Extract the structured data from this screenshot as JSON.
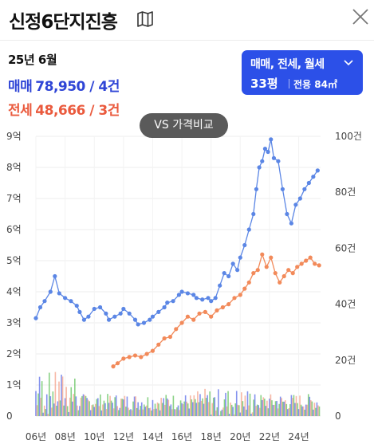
{
  "header": {
    "title": "신정6단지진흥"
  },
  "summary": {
    "date": "25년 6월",
    "trade_label": "매매",
    "trade_value": "78,950 / 4건",
    "lease_label": "전세",
    "lease_value": "48,666 / 3건"
  },
  "filter": {
    "types": "매매, 전세, 월세",
    "pyeong": "33평",
    "area": "전용 84㎡"
  },
  "compare_button": "VS 가격비교",
  "colors": {
    "trade": "#5b86e5",
    "lease": "#f28a5a",
    "accent": "#2c50e8"
  },
  "chart_data": {
    "type": "line",
    "y_left_ticks": [
      "0",
      "1억",
      "2억",
      "3억",
      "4억",
      "5억",
      "6억",
      "7억",
      "8억",
      "9억"
    ],
    "y_right_ticks": [
      "0",
      "20건",
      "40건",
      "60건",
      "80건",
      "100건"
    ],
    "x_ticks": [
      "06년",
      "08년",
      "10년",
      "12년",
      "14년",
      "16년",
      "18년",
      "20년",
      "22년",
      "24년"
    ],
    "ylim_left": [
      0,
      9
    ],
    "ylim_right": [
      0,
      100
    ],
    "xlim": [
      2006,
      2025.5
    ],
    "series": [
      {
        "name": "매매",
        "color": "#5b86e5",
        "x": [
          2006.0,
          2006.3,
          2006.6,
          2007.0,
          2007.3,
          2007.6,
          2008.0,
          2008.4,
          2008.8,
          2009.0,
          2009.3,
          2009.6,
          2010.0,
          2010.4,
          2010.8,
          2011.0,
          2011.4,
          2011.8,
          2012.0,
          2012.4,
          2012.8,
          2013.0,
          2013.4,
          2013.8,
          2014.0,
          2014.4,
          2014.8,
          2015.0,
          2015.4,
          2015.8,
          2016.0,
          2016.4,
          2016.8,
          2017.0,
          2017.4,
          2017.8,
          2018.0,
          2018.3,
          2018.6,
          2018.9,
          2019.2,
          2019.5,
          2019.8,
          2020.0,
          2020.3,
          2020.6,
          2020.9,
          2021.1,
          2021.3,
          2021.5,
          2021.7,
          2021.9,
          2022.1,
          2022.3,
          2022.6,
          2022.9,
          2023.2,
          2023.5,
          2023.8,
          2024.1,
          2024.4,
          2024.7,
          2025.0,
          2025.3
        ],
        "y": [
          3.15,
          3.5,
          3.7,
          4.0,
          4.5,
          3.95,
          3.8,
          3.7,
          3.55,
          3.35,
          3.1,
          3.2,
          3.45,
          3.5,
          3.3,
          3.1,
          3.2,
          3.3,
          3.45,
          3.3,
          3.1,
          2.95,
          3.0,
          3.1,
          3.2,
          3.35,
          3.5,
          3.65,
          3.7,
          3.9,
          4.0,
          3.95,
          3.9,
          3.8,
          3.75,
          3.8,
          3.7,
          3.8,
          4.2,
          4.6,
          4.5,
          4.9,
          4.7,
          5.1,
          5.5,
          6.0,
          6.5,
          7.3,
          8.0,
          8.2,
          8.6,
          8.5,
          8.9,
          8.3,
          8.2,
          7.3,
          6.5,
          6.2,
          6.8,
          7.0,
          7.3,
          7.5,
          7.7,
          7.9
        ]
      },
      {
        "name": "전세",
        "color": "#f28a5a",
        "x": [
          2011.3,
          2011.6,
          2012.0,
          2012.4,
          2012.8,
          2013.2,
          2013.6,
          2014.0,
          2014.4,
          2014.8,
          2015.2,
          2015.6,
          2016.0,
          2016.4,
          2016.8,
          2017.2,
          2017.6,
          2018.0,
          2018.4,
          2018.8,
          2019.2,
          2019.6,
          2020.0,
          2020.3,
          2020.6,
          2020.9,
          2021.2,
          2021.5,
          2021.8,
          2022.1,
          2022.4,
          2022.7,
          2023.0,
          2023.3,
          2023.6,
          2023.9,
          2024.2,
          2024.5,
          2024.8,
          2025.1,
          2025.4
        ],
        "y": [
          1.6,
          1.7,
          1.85,
          1.9,
          1.95,
          1.9,
          2.0,
          2.1,
          2.3,
          2.5,
          2.55,
          2.8,
          3.0,
          3.2,
          3.1,
          3.3,
          3.35,
          3.2,
          3.4,
          3.5,
          3.6,
          3.8,
          3.9,
          4.1,
          4.3,
          4.6,
          4.7,
          5.2,
          4.8,
          5.1,
          4.6,
          4.3,
          4.5,
          4.7,
          4.6,
          4.8,
          4.9,
          5.0,
          5.1,
          4.9,
          4.85
        ]
      }
    ],
    "volume_series": [
      {
        "name": "매매 거래량",
        "color": "#5b6ee8"
      },
      {
        "name": "전세 거래량",
        "color": "#f4a088"
      },
      {
        "name": "월세 거래량",
        "color": "#63c35e"
      }
    ],
    "grid": true
  }
}
